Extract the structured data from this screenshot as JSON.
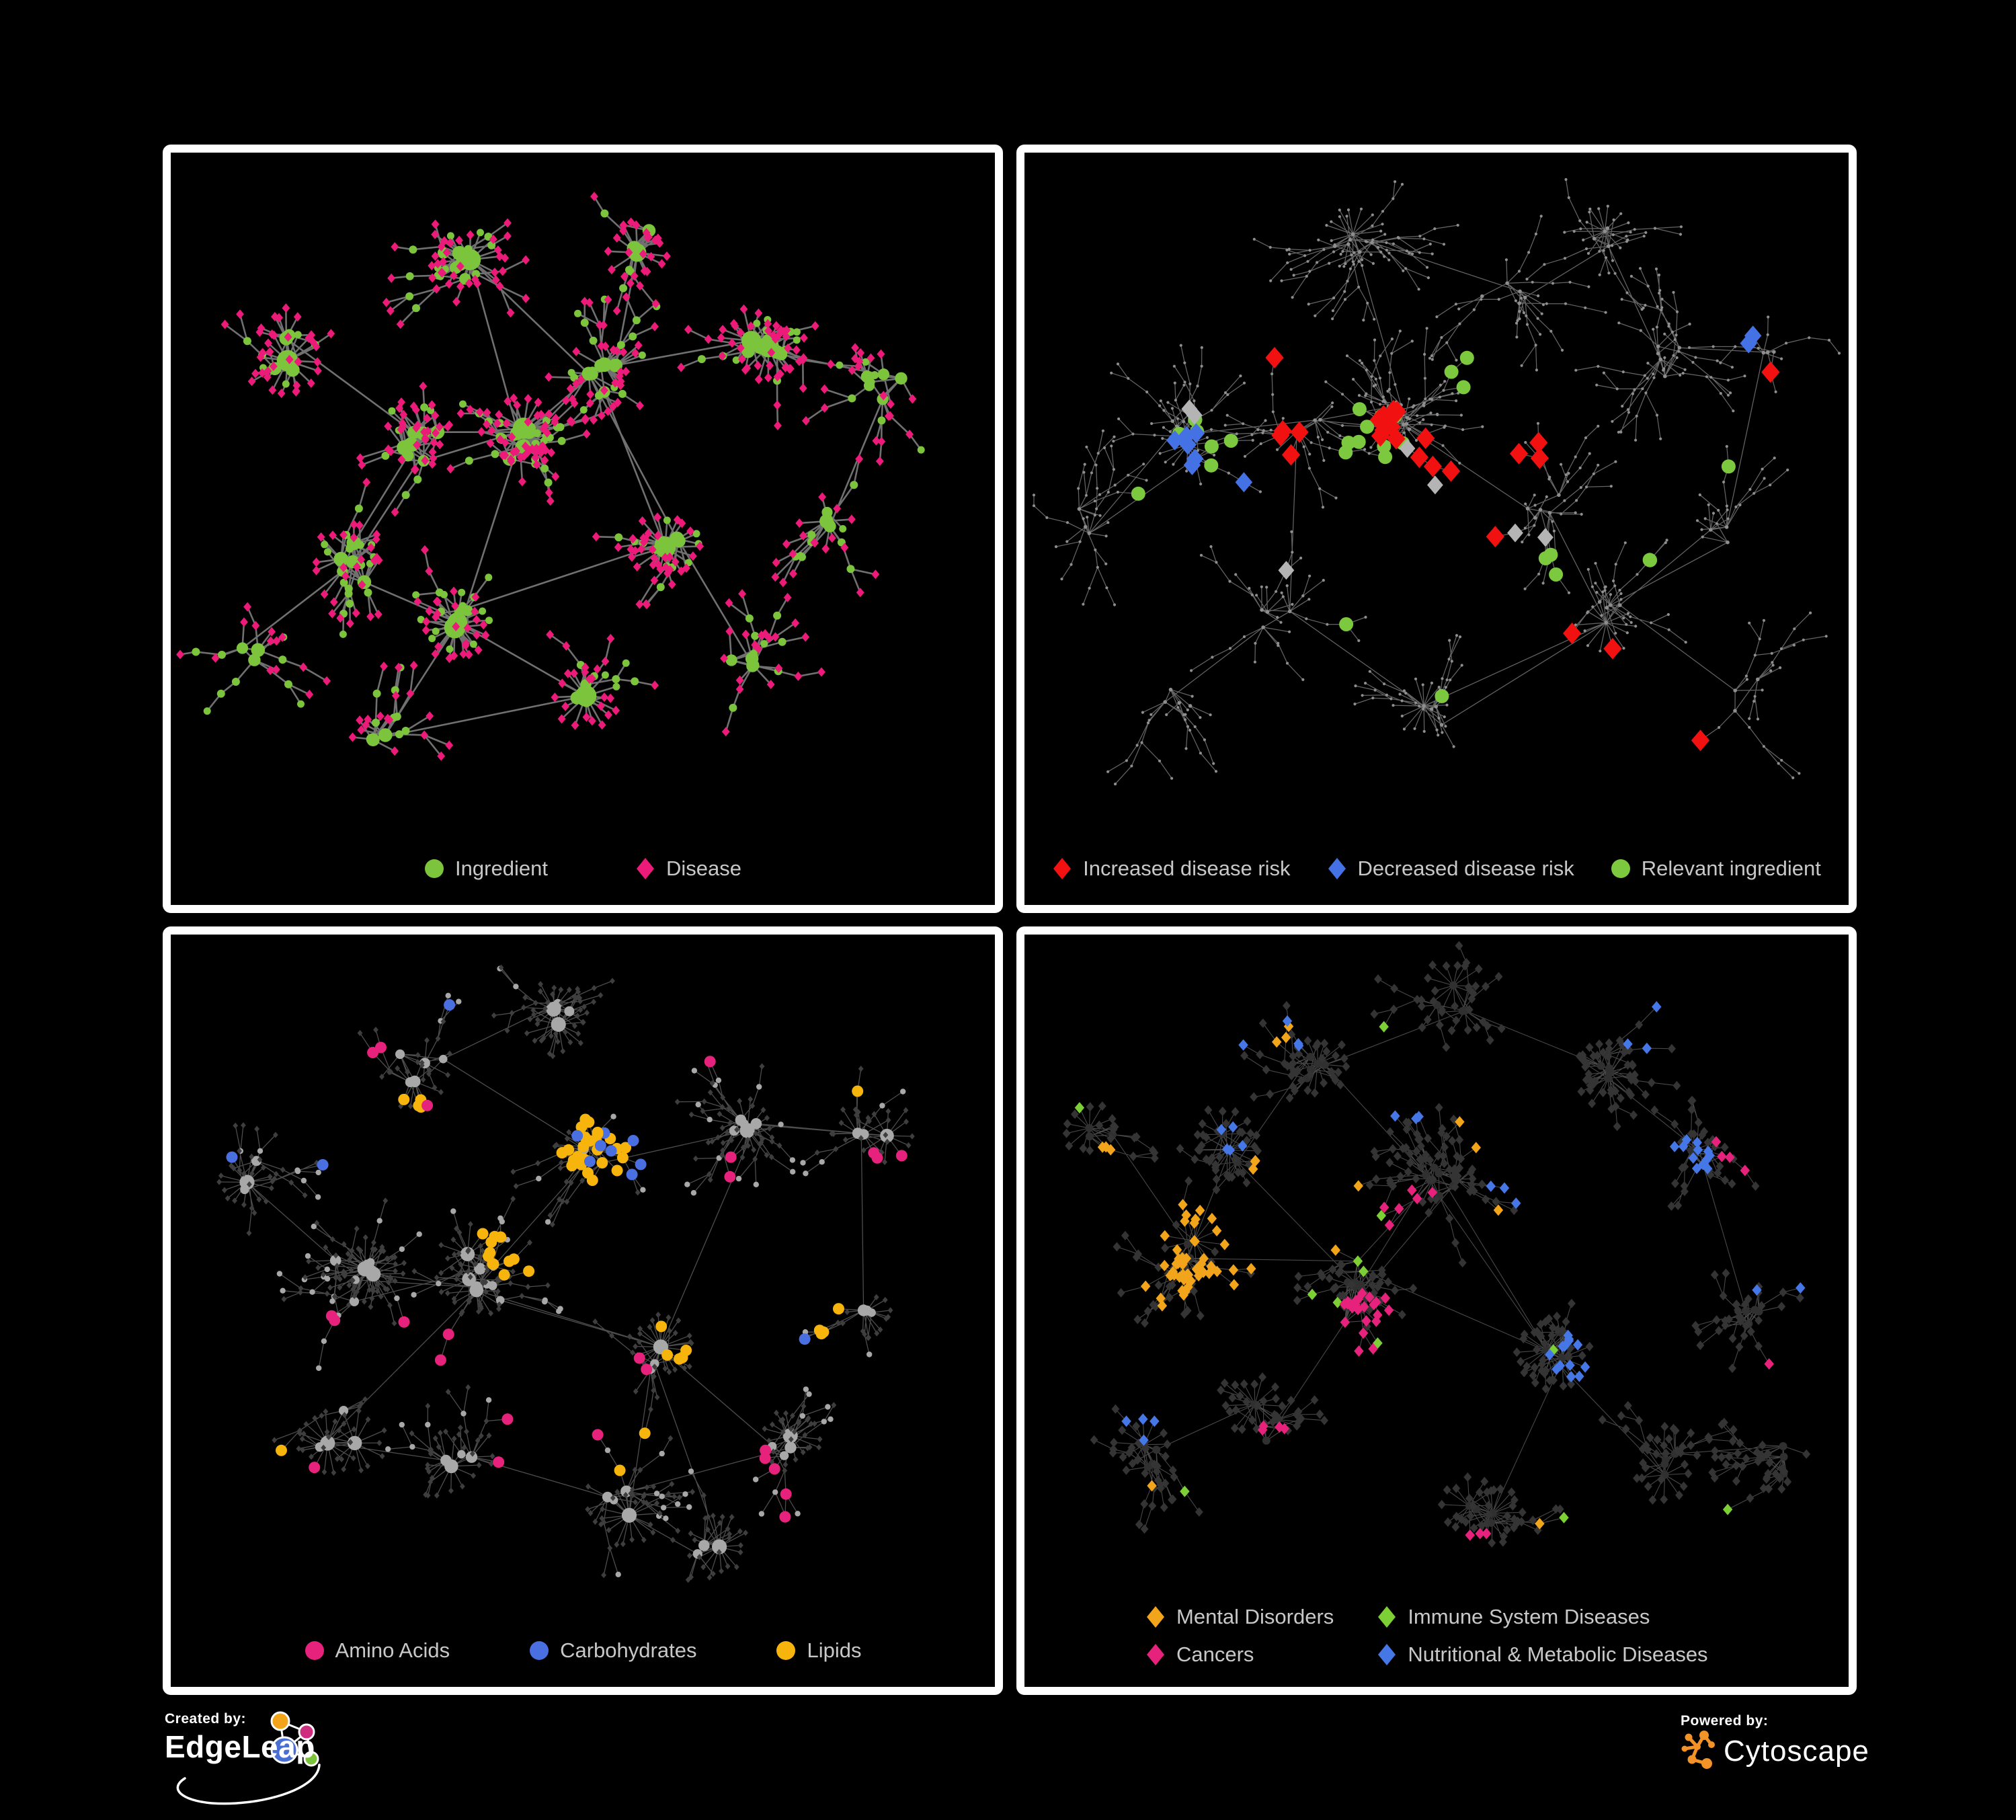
{
  "page": {
    "background": "#000000",
    "panel_border": "#ffffff",
    "legend_text_color": "#c8c8c8"
  },
  "panels": [
    {
      "id": "ingredient-disease",
      "legend": [
        {
          "shape": "circle",
          "color": "#7cc43c",
          "label": "Ingredient"
        },
        {
          "shape": "diamond",
          "color": "#ec1a78",
          "label": "Disease"
        }
      ],
      "network": {
        "edge_color": "#7a7a7a",
        "ingredient_color": "#7cc43c",
        "disease_color": "#ec1a78"
      }
    },
    {
      "id": "disease-risk",
      "legend": [
        {
          "shape": "diamond",
          "color": "#f21111",
          "label": "Increased disease risk"
        },
        {
          "shape": "diamond",
          "color": "#4472e4",
          "label": "Decreased disease risk"
        },
        {
          "shape": "circle",
          "color": "#7cc83e",
          "label": "Relevant ingredient"
        }
      ],
      "network": {
        "edge_color": "#6f6f6f",
        "base_node_color": "#8e8e8e",
        "increased_color": "#f21111",
        "decreased_color": "#4472e4",
        "unchanged_color": "#b4b4b4",
        "relevant_color": "#7cc83e",
        "highlight_counts": {
          "increased_disease_risk": 26,
          "decreased_disease_risk": 9,
          "unchanged": 7,
          "relevant_ingredient": 28
        }
      }
    },
    {
      "id": "nutrients",
      "legend": [
        {
          "shape": "circle",
          "color": "#e6227c",
          "label": "Amino Acids"
        },
        {
          "shape": "circle",
          "color": "#4a6fe0",
          "label": "Carbohydrates"
        },
        {
          "shape": "circle",
          "color": "#f6b40c",
          "label": "Lipids"
        }
      ],
      "network": {
        "edge_color": "#9a9a9a",
        "node_color": "#a8a8a8",
        "leaf_color": "#3e3e3e",
        "amino_acids_color": "#e6227c",
        "carbohydrates_color": "#4a6fe0",
        "lipids_color": "#f6b40c",
        "highlight_counts": {
          "amino_acids": 25,
          "carbohydrates": 12,
          "lipids": 55
        }
      }
    },
    {
      "id": "disease-categories",
      "legend": [
        {
          "shape": "diamond",
          "color": "#f2a51a",
          "label": "Mental Disorders"
        },
        {
          "shape": "diamond",
          "color": "#7ccf35",
          "label": "Immune System Diseases"
        },
        {
          "shape": "diamond",
          "color": "#e6227c",
          "label": "Cancers"
        },
        {
          "shape": "diamond",
          "color": "#4577e6",
          "label": "Nutritional & Metabolic Diseases"
        }
      ],
      "network": {
        "edge_color": "#8f8f8f",
        "node_color": "#303030",
        "leaf_color": "#343434",
        "mental_disorders_color": "#f2a51a",
        "immune_color": "#7ccf35",
        "cancers_color": "#e6227c",
        "metabolic_color": "#4577e6",
        "highlight_counts": {
          "mental_disorders": 66,
          "immune_system_diseases": 12,
          "cancers": 42,
          "nutritional_metabolic_diseases": 49
        }
      }
    }
  ],
  "footer": {
    "created_by": "Created by:",
    "edgeleap": "EdgeLeap",
    "powered_by": "Powered by:",
    "cytoscape": "Cytoscape",
    "edgeleap_logo_colors": {
      "orange": "#f2a51a",
      "magenta": "#cf2e7f",
      "blue": "#4a6fd4",
      "green": "#7cc43c"
    },
    "cytoscape_color": "#f39226"
  }
}
